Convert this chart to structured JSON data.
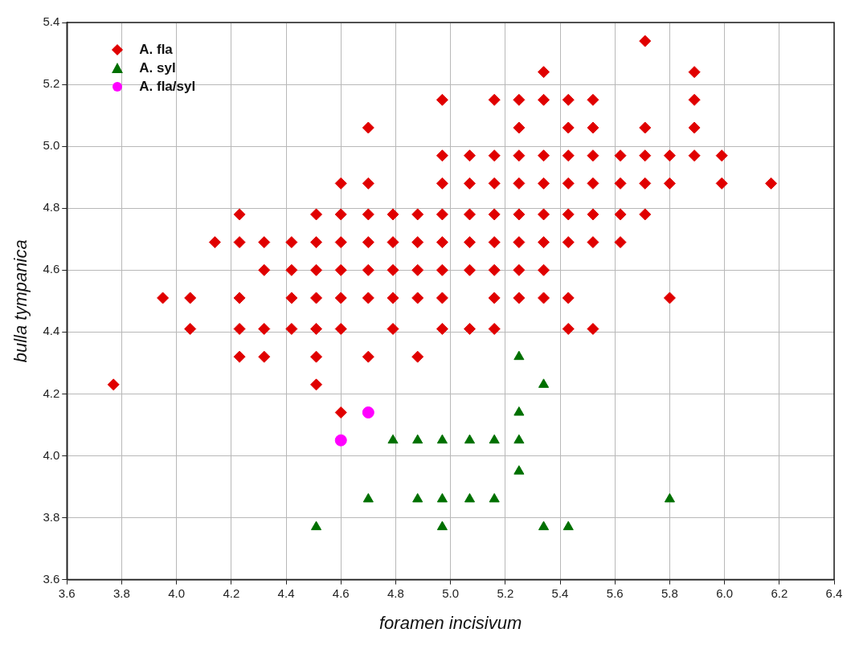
{
  "chart_data": {
    "type": "scatter",
    "xlabel": "foramen incisivum",
    "ylabel": "bulla tympanica",
    "xlim": [
      3.6,
      6.4
    ],
    "xticks": [
      3.6,
      3.8,
      {
        "value": 4,
        "label": "4.0"
      },
      4.2,
      4.4,
      4.6,
      4.8,
      {
        "value": 5,
        "label": "5.0"
      },
      5.2,
      5.4,
      5.6,
      5.8,
      {
        "value": 6,
        "label": "6.0"
      },
      6.2,
      6.4
    ],
    "ylim": [
      3.6,
      5.4
    ],
    "yticks": [
      3.6,
      3.8,
      {
        "value": 4,
        "label": "4.0"
      },
      4.2,
      4.4,
      4.6,
      4.8,
      {
        "value": 5,
        "label": "5.0"
      },
      5.2,
      5.4
    ],
    "grid": true,
    "legend": "top left",
    "series": [
      {
        "name": "A. fla",
        "color": "#e00000",
        "marker": "diamond",
        "x": [
          5.71,
          5.34,
          5.89,
          4.97,
          5.16,
          5.25,
          5.34,
          5.43,
          5.52,
          5.89,
          4.7,
          5.25,
          5.43,
          5.52,
          5.71,
          5.89,
          4.97,
          5.07,
          5.16,
          5.25,
          5.34,
          5.43,
          5.52,
          5.62,
          5.71,
          5.8,
          5.89,
          5.99,
          4.6,
          4.7,
          4.97,
          5.07,
          5.16,
          5.25,
          5.34,
          5.43,
          5.52,
          5.62,
          5.71,
          5.8,
          5.99,
          6.17,
          4.23,
          4.51,
          4.6,
          4.7,
          4.79,
          4.88,
          4.97,
          5.07,
          5.16,
          5.25,
          5.34,
          5.43,
          5.52,
          5.62,
          5.71,
          4.14,
          4.23,
          4.32,
          4.42,
          4.51,
          4.6,
          4.7,
          4.79,
          4.88,
          4.97,
          5.07,
          5.16,
          5.25,
          5.34,
          5.43,
          5.52,
          5.62,
          4.32,
          4.42,
          4.51,
          4.6,
          4.7,
          4.79,
          4.88,
          4.97,
          5.07,
          5.16,
          5.25,
          5.34,
          3.95,
          4.05,
          4.23,
          4.42,
          4.51,
          4.6,
          4.7,
          4.79,
          4.88,
          4.97,
          5.16,
          5.25,
          5.34,
          5.43,
          5.8,
          4.05,
          4.23,
          4.32,
          4.42,
          4.51,
          4.6,
          4.79,
          4.97,
          5.07,
          5.16,
          5.43,
          5.52,
          4.23,
          4.32,
          4.51,
          4.7,
          4.88,
          3.77,
          4.51,
          4.6
        ],
        "values": [
          5.34,
          5.24,
          5.24,
          5.15,
          5.15,
          5.15,
          5.15,
          5.15,
          5.15,
          5.15,
          5.06,
          5.06,
          5.06,
          5.06,
          5.06,
          5.06,
          4.97,
          4.97,
          4.97,
          4.97,
          4.97,
          4.97,
          4.97,
          4.97,
          4.97,
          4.97,
          4.97,
          4.97,
          4.88,
          4.88,
          4.88,
          4.88,
          4.88,
          4.88,
          4.88,
          4.88,
          4.88,
          4.88,
          4.88,
          4.88,
          4.88,
          4.88,
          4.78,
          4.78,
          4.78,
          4.78,
          4.78,
          4.78,
          4.78,
          4.78,
          4.78,
          4.78,
          4.78,
          4.78,
          4.78,
          4.78,
          4.78,
          4.69,
          4.69,
          4.69,
          4.69,
          4.69,
          4.69,
          4.69,
          4.69,
          4.69,
          4.69,
          4.69,
          4.69,
          4.69,
          4.69,
          4.69,
          4.69,
          4.69,
          4.6,
          4.6,
          4.6,
          4.6,
          4.6,
          4.6,
          4.6,
          4.6,
          4.6,
          4.6,
          4.6,
          4.6,
          4.51,
          4.51,
          4.51,
          4.51,
          4.51,
          4.51,
          4.51,
          4.51,
          4.51,
          4.51,
          4.51,
          4.51,
          4.51,
          4.51,
          4.51,
          4.41,
          4.41,
          4.41,
          4.41,
          4.41,
          4.41,
          4.41,
          4.41,
          4.41,
          4.41,
          4.41,
          4.41,
          4.32,
          4.32,
          4.32,
          4.32,
          4.32,
          4.23,
          4.23,
          4.14
        ]
      },
      {
        "name": "A. syl",
        "color": "#007000",
        "marker": "triangle",
        "x": [
          5.25,
          5.34,
          5.25,
          4.79,
          4.88,
          4.97,
          5.07,
          5.16,
          5.25,
          5.25,
          4.7,
          4.88,
          4.97,
          5.07,
          5.16,
          5.8,
          4.51,
          4.97,
          5.34,
          5.43
        ],
        "values": [
          4.32,
          4.23,
          4.14,
          4.05,
          4.05,
          4.05,
          4.05,
          4.05,
          4.05,
          3.95,
          3.86,
          3.86,
          3.86,
          3.86,
          3.86,
          3.86,
          3.77,
          3.77,
          3.77,
          3.77
        ]
      },
      {
        "name": "A. fla/syl",
        "color": "#ff00ff",
        "marker": "circle",
        "x": [
          4.6,
          4.7
        ],
        "values": [
          4.05,
          4.14
        ]
      }
    ]
  }
}
